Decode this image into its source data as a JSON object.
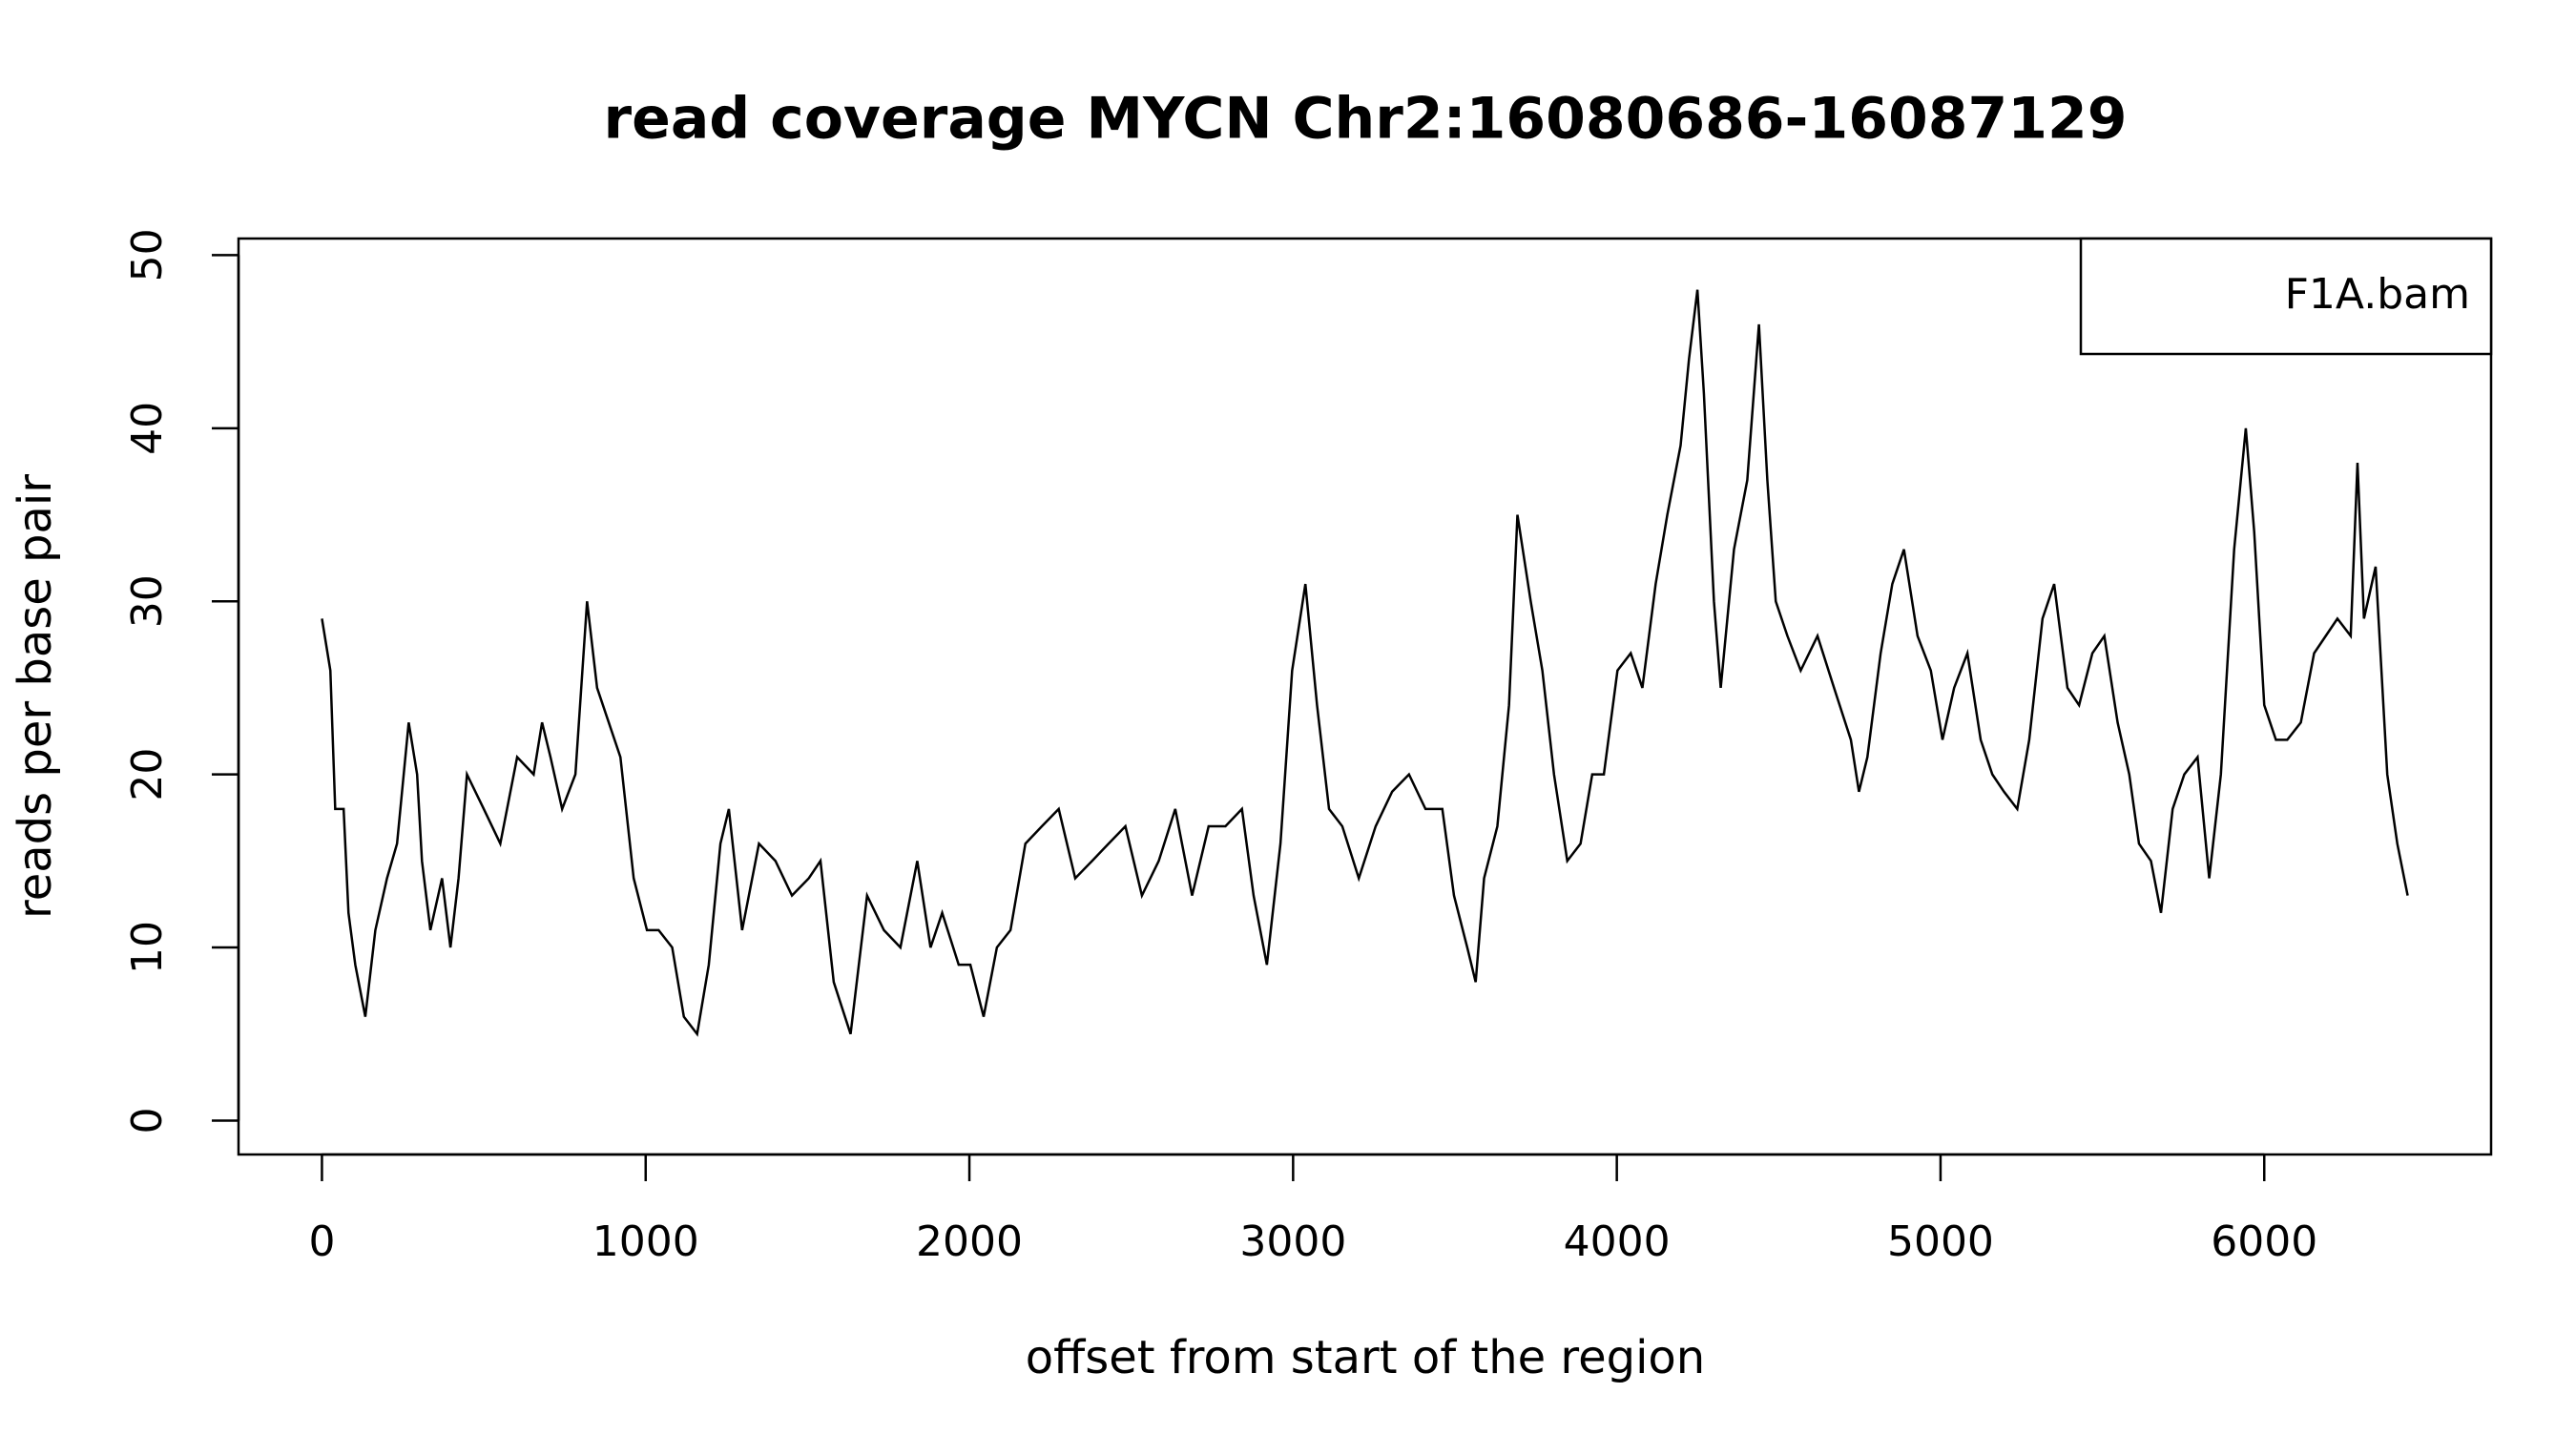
{
  "chart_data": {
    "type": "line",
    "title": "read coverage MYCN  Chr2:16080686-16087129",
    "x_label": "offset from start of the region",
    "y_label": "reads per base pair",
    "legend": "topright",
    "xlim": [
      -257.7,
      6700.7
    ],
    "ylim": [
      -1.96,
      50.96
    ],
    "xticks": [
      0,
      1000,
      2000,
      3000,
      4000,
      5000,
      6000
    ],
    "yticks": [
      0,
      10,
      20,
      30,
      40,
      50
    ],
    "x": [
      0,
      26,
      41,
      67,
      82,
      103,
      134,
      165,
      201,
      232,
      268,
      294,
      309,
      335,
      371,
      397,
      422,
      448,
      500,
      551,
      603,
      654,
      680,
      706,
      742,
      783,
      819,
      850,
      886,
      922,
      963,
      1004,
      1040,
      1082,
      1118,
      1159,
      1195,
      1231,
      1257,
      1298,
      1350,
      1401,
      1452,
      1504,
      1540,
      1581,
      1633,
      1684,
      1736,
      1787,
      1839,
      1880,
      1916,
      1967,
      2003,
      2044,
      2085,
      2127,
      2173,
      2224,
      2276,
      2327,
      2379,
      2430,
      2482,
      2533,
      2585,
      2636,
      2688,
      2739,
      2791,
      2842,
      2878,
      2919,
      2961,
      2997,
      3038,
      3074,
      3111,
      3152,
      3203,
      3255,
      3306,
      3358,
      3409,
      3461,
      3497,
      3538,
      3564,
      3590,
      3631,
      3667,
      3693,
      3734,
      3770,
      3806,
      3847,
      3888,
      3924,
      3960,
      4002,
      4043,
      4079,
      4120,
      4156,
      4197,
      4223,
      4249,
      4269,
      4300,
      4321,
      4362,
      4403,
      4439,
      4465,
      4491,
      4527,
      4568,
      4620,
      4671,
      4723,
      4748,
      4774,
      4815,
      4851,
      4887,
      4929,
      4970,
      5006,
      5042,
      5083,
      5124,
      5160,
      5196,
      5237,
      5274,
      5315,
      5351,
      5392,
      5428,
      5469,
      5506,
      5547,
      5583,
      5613,
      5650,
      5681,
      5717,
      5753,
      5794,
      5830,
      5866,
      5907,
      5943,
      5969,
      6000,
      6036,
      6071,
      6113,
      6154,
      6190,
      6226,
      6267,
      6288,
      6308,
      6344,
      6380,
      6411,
      6443
    ],
    "series": [
      {
        "name": "F1A.bam",
        "color": "#000000",
        "values": [
          29,
          26,
          18,
          18,
          12,
          9,
          6,
          11,
          14,
          16,
          23,
          20,
          15,
          11,
          14,
          10,
          14,
          20,
          18,
          16,
          21,
          20,
          23,
          21,
          18,
          20,
          30,
          25,
          23,
          21,
          14,
          11,
          11,
          10,
          6,
          5,
          9,
          16,
          18,
          11,
          16,
          15,
          13,
          14,
          15,
          8,
          5,
          13,
          11,
          10,
          15,
          10,
          12,
          9,
          9,
          6,
          10,
          11,
          16,
          17,
          18,
          14,
          15,
          16,
          17,
          13,
          15,
          18,
          13,
          17,
          17,
          18,
          13,
          9,
          16,
          26,
          31,
          24,
          18,
          17,
          14,
          17,
          19,
          20,
          18,
          18,
          13,
          10,
          8,
          14,
          17,
          24,
          35,
          30,
          26,
          20,
          15,
          16,
          20,
          20,
          26,
          27,
          25,
          31,
          35,
          39,
          44,
          48,
          42,
          30,
          25,
          33,
          37,
          46,
          37,
          30,
          28,
          26,
          28,
          25,
          22,
          19,
          21,
          27,
          31,
          33,
          28,
          26,
          22,
          25,
          27,
          22,
          20,
          19,
          18,
          22,
          29,
          31,
          25,
          24,
          27,
          28,
          23,
          20,
          16,
          15,
          12,
          18,
          20,
          21,
          14,
          20,
          33,
          40,
          34,
          24,
          22,
          22,
          23,
          27,
          28,
          29,
          28,
          38,
          29,
          32,
          20,
          16,
          13
        ]
      }
    ]
  }
}
